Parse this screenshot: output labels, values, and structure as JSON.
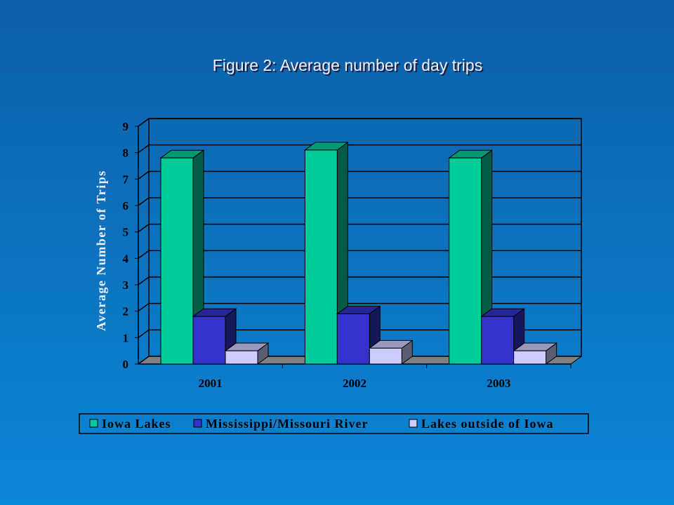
{
  "chart_data": {
    "type": "bar3d",
    "title": "Figure 2: Average number of day trips",
    "y_label": "Average Number of Trips",
    "categories": [
      "2001",
      "2002",
      "2003"
    ],
    "series": [
      {
        "name": "Iowa Lakes",
        "color": "#00cc99",
        "values": [
          7.8,
          8.1,
          7.8
        ]
      },
      {
        "name": "Mississippi/Missouri River",
        "color": "#3333cc",
        "values": [
          1.8,
          1.9,
          1.8
        ]
      },
      {
        "name": "Lakes outside of Iowa",
        "color": "#ccccff",
        "values": [
          0.5,
          0.6,
          0.5
        ]
      }
    ],
    "ylim": [
      0,
      9
    ],
    "yticks": [
      0,
      1,
      2,
      3,
      4,
      5,
      6,
      7,
      8,
      9
    ],
    "grid": true,
    "legend": "bottom"
  }
}
